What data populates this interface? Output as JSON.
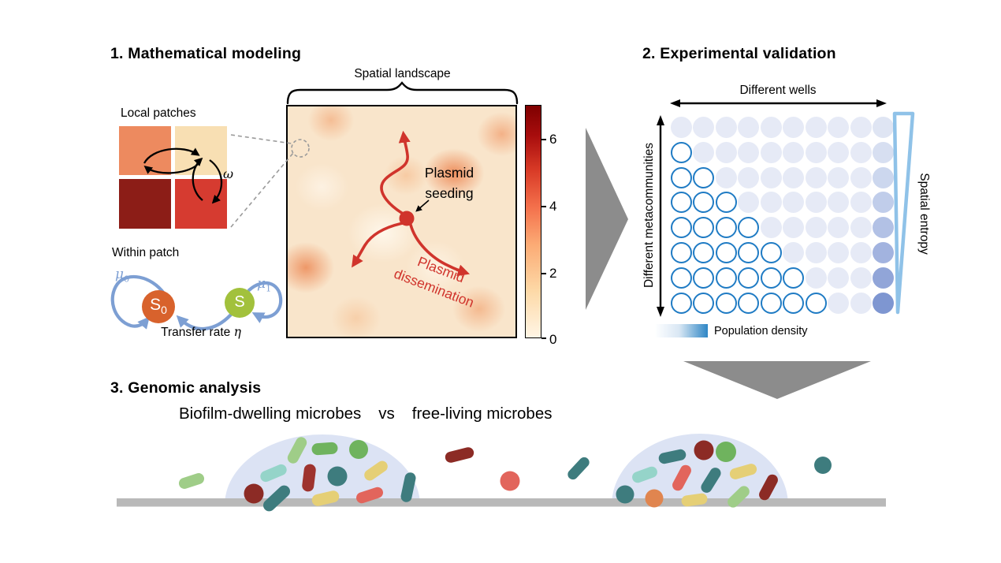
{
  "panel1": {
    "title": "1. Mathematical modeling",
    "local_patches_label": "Local patches",
    "omega": "ω",
    "spatial_landscape_label": "Spatial landscape",
    "plasmid_seeding_lines": [
      "Plasmid",
      "seeding"
    ],
    "plasmid_dissemination_lines": [
      "Plasmid",
      "dissemination"
    ],
    "within_patch_label": "Within patch",
    "mu0_base": "μ",
    "mu0_sub": "0",
    "mu1_base": "μ",
    "mu1_sub": "1",
    "s0_base": "S",
    "s0_sub": "0",
    "s_label": "S",
    "transfer_rate_label": "Transfer rate ",
    "transfer_rate_symbol": "η",
    "colorbar_ticks": [
      "6",
      "4",
      "2",
      "0"
    ]
  },
  "panel2": {
    "title": "2. Experimental validation",
    "wells_label": "Different wells",
    "metacommunities_label": "Different metacommunities",
    "entropy_label": "Spatial entropy",
    "density_label": "Population density",
    "grid": {
      "rows": 8,
      "cols": 10,
      "fill_light": "#e6eaf6",
      "last_col_shades": [
        "#dfe5f3",
        "#d7dff1",
        "#ccd7ee",
        "#c0cdea",
        "#b2c1e5",
        "#a2b3df",
        "#91a5d8",
        "#7e96d1"
      ]
    }
  },
  "panel3": {
    "title": "3. Genomic analysis",
    "subtitle_left": "Biofilm-dwelling microbes",
    "subtitle_mid": "vs",
    "subtitle_right": "free-living microbes"
  },
  "colors": {
    "accent_red": "#d0342c",
    "patch_tl": "#ed8a5f",
    "patch_tr": "#f8dfb3",
    "patch_bl": "#8c1d17",
    "patch_br": "#d63b30",
    "s0_fill": "#d8622c",
    "s_fill": "#a2c13c",
    "rate_arrow": "#7d9fd3",
    "well_outline": "#1f7bc4",
    "entropy_outline": "#8fc2e8",
    "gray_arrow": "#8c8c8c",
    "biofilm_fill": "#dce3f4",
    "surface_gray": "#b9b9b9",
    "heatmap_low": "#fff5e5",
    "heatmap_high": "#7f0000",
    "microbes_palette": {
      "lightgreen": "#9fcd88",
      "green": "#6fb35e",
      "cyan": "#95d4c9",
      "maroon": "#8c2b25",
      "crimson": "#9e332e",
      "teal": "#3e7c7e",
      "yellow": "#e5cf76",
      "salmon": "#e2655c",
      "orange": "#e0854f"
    }
  }
}
